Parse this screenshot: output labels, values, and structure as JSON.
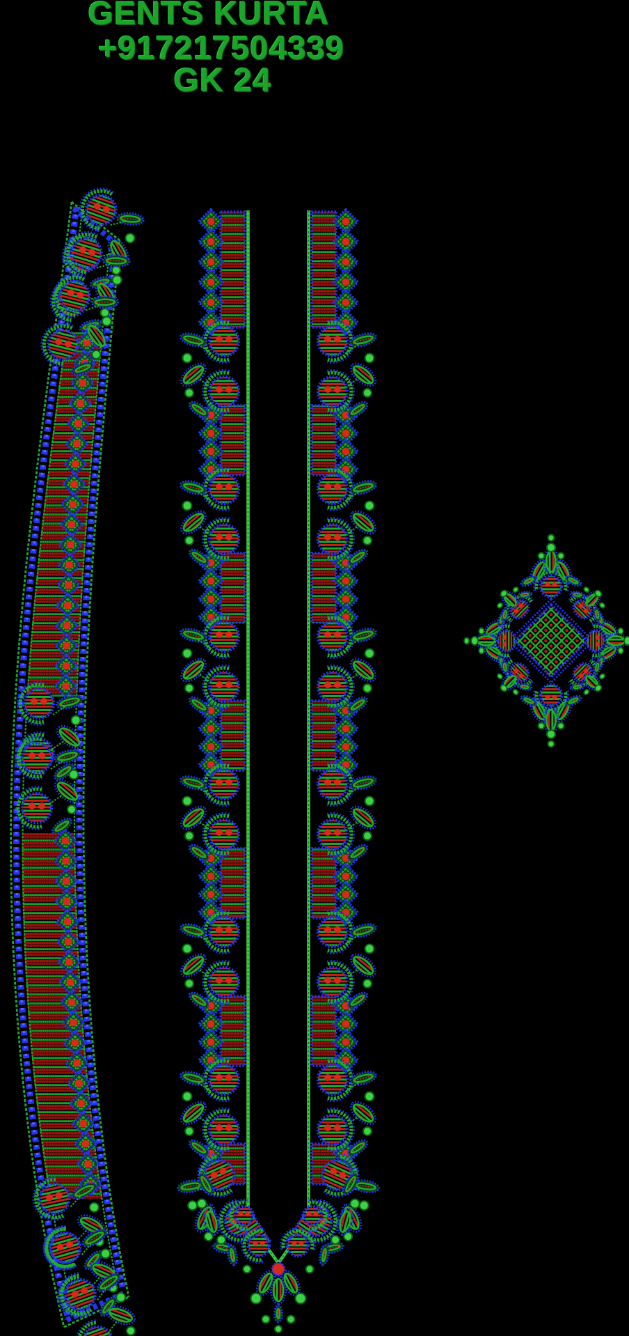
{
  "header": {
    "line1": "GENTS KURTA",
    "line2": "+917217504339",
    "line3": "GK 24"
  },
  "colors": {
    "background": "#000000",
    "text_green": "#1ba32a",
    "green": "#1fae2c",
    "green_bright": "#3bd145",
    "green_dark": "#0a5f14",
    "blue": "#2434ef",
    "blue_bright": "#5a68ff",
    "red_dark": "#96150e",
    "red_deep": "#8a120b",
    "red_bright": "#d8291a",
    "red_mid": "#c22317"
  }
}
